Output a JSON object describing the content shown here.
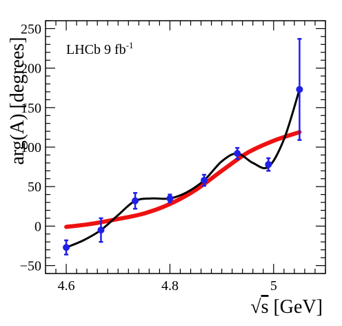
{
  "chart_data": {
    "type": "scatter",
    "title": "",
    "xlabel": "√s [GeV]",
    "xlabel_parts": {
      "root": "√",
      "var": "s",
      "unit": " [GeV]"
    },
    "ylabel": "arg(A) [degrees]",
    "xlim": [
      4.56,
      5.1
    ],
    "ylim": [
      -60,
      260
    ],
    "x_ticks": [
      4.6,
      4.8,
      5.0
    ],
    "x_tick_labels": [
      "4.6",
      "4.8",
      "5"
    ],
    "y_ticks": [
      -50,
      0,
      50,
      100,
      150,
      200,
      250
    ],
    "y_tick_labels": [
      "−50",
      "0",
      "50",
      "100",
      "150",
      "200",
      "250"
    ],
    "grid": false,
    "annotation": {
      "text": "LHCb 9 fb",
      "superscript": "-1"
    },
    "colors": {
      "data": "#1f1fe6",
      "smooth": "#000000",
      "model": "#ee1111"
    },
    "data_points": {
      "x": [
        4.6,
        4.667,
        4.733,
        4.8,
        4.866,
        4.93,
        4.99,
        5.05
      ],
      "y": [
        -27,
        -5,
        32,
        35,
        58,
        92,
        78,
        173
      ],
      "err": [
        9,
        15,
        10,
        5,
        7,
        7,
        8,
        64
      ]
    },
    "smooth_curve": {
      "x": [
        4.6,
        4.633,
        4.667,
        4.7,
        4.733,
        4.766,
        4.8,
        4.833,
        4.866,
        4.9,
        4.93,
        4.96,
        4.99,
        5.02,
        5.05
      ],
      "y": [
        -27,
        -18,
        -5,
        14,
        32,
        35,
        35,
        43,
        58,
        82,
        92,
        80,
        75,
        110,
        173
      ]
    },
    "model_curve": {
      "x": [
        4.6,
        4.65,
        4.7,
        4.75,
        4.8,
        4.85,
        4.9,
        4.95,
        5.0,
        5.05
      ],
      "y": [
        -1,
        3,
        9,
        16,
        28,
        46,
        70,
        93,
        108,
        119
      ]
    }
  }
}
